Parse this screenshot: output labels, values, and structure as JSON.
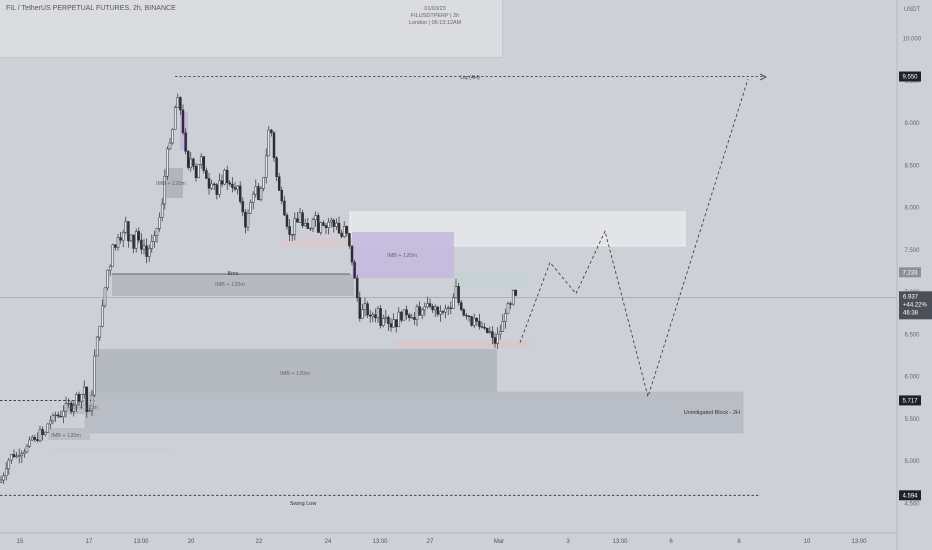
{
  "header": {
    "symbol_title": "FIL / TetherUS PERPETUAL FUTURES, 2h, BINANCE",
    "meta_lines": [
      "01/03/23",
      "FILUSDTPERP | 2h",
      "London | 06:13:12AM"
    ]
  },
  "price_axis": {
    "unit": "USDT",
    "ticks": [
      "10.000",
      "9.500",
      "9.000",
      "8.500",
      "8.000",
      "7.500",
      "7.000",
      "6.500",
      "6.000",
      "5.500",
      "5.000",
      "4.500"
    ]
  },
  "price_tags": {
    "high": "9.550",
    "zone_top": "7.233",
    "current_price": "6.937",
    "current_change": "+44.22%",
    "current_timer": "46:38",
    "block": "5.717",
    "low": "4.594"
  },
  "time_axis": {
    "ticks": [
      "15",
      "17",
      "13:00",
      "20",
      "22",
      "24",
      "13:00",
      "27",
      "Mar",
      "3",
      "13:00",
      "6",
      "8",
      "10",
      "13:00"
    ]
  },
  "annotations": {
    "liq": "Liq (4H)",
    "bms": "Bms",
    "imb_upper": "IMB + 120m",
    "imb_purple": "IMB + 120m",
    "imb_big": "IMB + 120m",
    "imb_small_1": "IMB + 120m",
    "imb_small_2": "IMB + 120m",
    "imb_spike": "IMB + 120m",
    "unmitigated": "Unmitigated Block - 2H",
    "swing_low": "Swing Low"
  },
  "colors": {
    "background": "#cdd0d6",
    "candle": "#2c2f36",
    "imb_zone": "#b3b7bf",
    "block_zone": "#b9bec6",
    "purple_zone": "#c4b8de",
    "light_zone": "#e3e4e8",
    "tag_dark": "#1e222d"
  },
  "chart_data": {
    "type": "candlestick",
    "title": "FIL / TetherUS PERPETUAL FUTURES, 2h, BINANCE",
    "ylabel": "USDT",
    "ylim": [
      4.35,
      10.3
    ],
    "price_path": [
      [
        0,
        4.75
      ],
      [
        4,
        4.85
      ],
      [
        8,
        5.0
      ],
      [
        12,
        5.08
      ],
      [
        16,
        5.05
      ],
      [
        20,
        5.1
      ],
      [
        24,
        5.12
      ],
      [
        28,
        5.18
      ],
      [
        32,
        5.28
      ],
      [
        36,
        5.22
      ],
      [
        40,
        5.35
      ],
      [
        44,
        5.28
      ],
      [
        48,
        5.45
      ],
      [
        52,
        5.5
      ],
      [
        56,
        5.55
      ],
      [
        60,
        5.52
      ],
      [
        64,
        5.62
      ],
      [
        68,
        5.68
      ],
      [
        72,
        5.6
      ],
      [
        76,
        5.78
      ],
      [
        80,
        5.72
      ],
      [
        84,
        5.9
      ],
      [
        88,
        5.45
      ],
      [
        92,
        5.8
      ],
      [
        95,
        6.3
      ],
      [
        98,
        6.5
      ],
      [
        101,
        6.7
      ],
      [
        104,
        6.95
      ],
      [
        107,
        7.25
      ],
      [
        110,
        7.3
      ],
      [
        113,
        7.6
      ],
      [
        116,
        7.5
      ],
      [
        119,
        7.75
      ],
      [
        122,
        7.55
      ],
      [
        125,
        7.9
      ],
      [
        128,
        7.6
      ],
      [
        131,
        7.7
      ],
      [
        134,
        7.5
      ],
      [
        137,
        7.8
      ],
      [
        140,
        7.45
      ],
      [
        143,
        7.62
      ],
      [
        146,
        7.4
      ],
      [
        150,
        7.55
      ],
      [
        154,
        7.62
      ],
      [
        158,
        7.8
      ],
      [
        162,
        8.0
      ],
      [
        165,
        8.4
      ],
      [
        168,
        8.8
      ],
      [
        171,
        8.7
      ],
      [
        174,
        9.1
      ],
      [
        177,
        9.3
      ],
      [
        180,
        9.2
      ],
      [
        183,
        8.9
      ],
      [
        186,
        8.6
      ],
      [
        189,
        8.4
      ],
      [
        192,
        8.7
      ],
      [
        195,
        8.3
      ],
      [
        198,
        8.5
      ],
      [
        201,
        8.6
      ],
      [
        204,
        8.4
      ],
      [
        207,
        8.35
      ],
      [
        210,
        8.2
      ],
      [
        213,
        8.4
      ],
      [
        216,
        8.1
      ],
      [
        219,
        8.3
      ],
      [
        222,
        8.25
      ],
      [
        225,
        8.5
      ],
      [
        228,
        8.2
      ],
      [
        231,
        8.35
      ],
      [
        234,
        8.15
      ],
      [
        237,
        8.3
      ],
      [
        240,
        8.05
      ],
      [
        243,
        7.95
      ],
      [
        246,
        7.75
      ],
      [
        249,
        8.0
      ],
      [
        252,
        8.1
      ],
      [
        255,
        8.3
      ],
      [
        258,
        8.05
      ],
      [
        261,
        8.2
      ],
      [
        264,
        8.4
      ],
      [
        267,
        8.7
      ],
      [
        270,
        9.05
      ],
      [
        273,
        8.7
      ],
      [
        276,
        8.4
      ],
      [
        279,
        8.2
      ],
      [
        282,
        8.1
      ],
      [
        285,
        7.9
      ],
      [
        288,
        7.75
      ],
      [
        291,
        7.6
      ],
      [
        294,
        7.85
      ],
      [
        297,
        7.8
      ],
      [
        300,
        7.95
      ],
      [
        303,
        7.75
      ],
      [
        306,
        7.8
      ],
      [
        309,
        7.7
      ],
      [
        312,
        7.85
      ],
      [
        315,
        7.95
      ],
      [
        318,
        7.72
      ],
      [
        321,
        7.85
      ],
      [
        324,
        7.8
      ],
      [
        327,
        7.75
      ],
      [
        330,
        7.9
      ],
      [
        333,
        7.75
      ],
      [
        336,
        7.85
      ],
      [
        339,
        7.7
      ],
      [
        342,
        7.65
      ],
      [
        345,
        7.8
      ],
      [
        348,
        7.6
      ],
      [
        351,
        7.45
      ],
      [
        354,
        7.2
      ],
      [
        357,
        6.95
      ],
      [
        360,
        6.7
      ],
      [
        363,
        6.8
      ],
      [
        366,
        6.85
      ],
      [
        369,
        6.65
      ],
      [
        372,
        6.75
      ],
      [
        375,
        6.7
      ],
      [
        378,
        6.8
      ],
      [
        381,
        6.6
      ],
      [
        384,
        6.75
      ],
      [
        387,
        6.72
      ],
      [
        390,
        6.55
      ],
      [
        393,
        6.7
      ],
      [
        396,
        6.6
      ],
      [
        399,
        6.75
      ],
      [
        402,
        6.68
      ],
      [
        405,
        6.8
      ],
      [
        408,
        6.7
      ],
      [
        411,
        6.75
      ],
      [
        414,
        6.65
      ],
      [
        417,
        6.8
      ],
      [
        420,
        6.7
      ],
      [
        423,
        6.85
      ],
      [
        426,
        6.78
      ],
      [
        429,
        6.9
      ],
      [
        432,
        6.75
      ],
      [
        435,
        6.85
      ],
      [
        438,
        6.7
      ],
      [
        441,
        6.8
      ],
      [
        444,
        6.72
      ],
      [
        447,
        6.85
      ],
      [
        450,
        6.75
      ],
      [
        453,
        6.9
      ],
      [
        456,
        7.05
      ],
      [
        459,
        6.85
      ],
      [
        462,
        6.8
      ],
      [
        465,
        6.7
      ],
      [
        468,
        6.78
      ],
      [
        471,
        6.6
      ],
      [
        474,
        6.72
      ],
      [
        477,
        6.65
      ],
      [
        480,
        6.55
      ],
      [
        483,
        6.6
      ],
      [
        486,
        6.5
      ],
      [
        489,
        6.55
      ],
      [
        492,
        6.45
      ],
      [
        495,
        6.4
      ],
      [
        498,
        6.5
      ],
      [
        501,
        6.55
      ],
      [
        504,
        6.7
      ],
      [
        507,
        6.85
      ],
      [
        510,
        6.8
      ],
      [
        513,
        7.0
      ],
      [
        516,
        6.937
      ]
    ],
    "projection": [
      [
        520,
        6.4
      ],
      [
        550,
        7.35
      ],
      [
        576,
        6.98
      ],
      [
        605,
        7.72
      ],
      [
        648,
        5.76
      ],
      [
        748,
        9.52
      ]
    ],
    "levels": {
      "liquidity_high": 9.55,
      "bms": 7.233,
      "last_price": 6.937,
      "block_top": 5.717,
      "swing_low": 4.594
    }
  }
}
